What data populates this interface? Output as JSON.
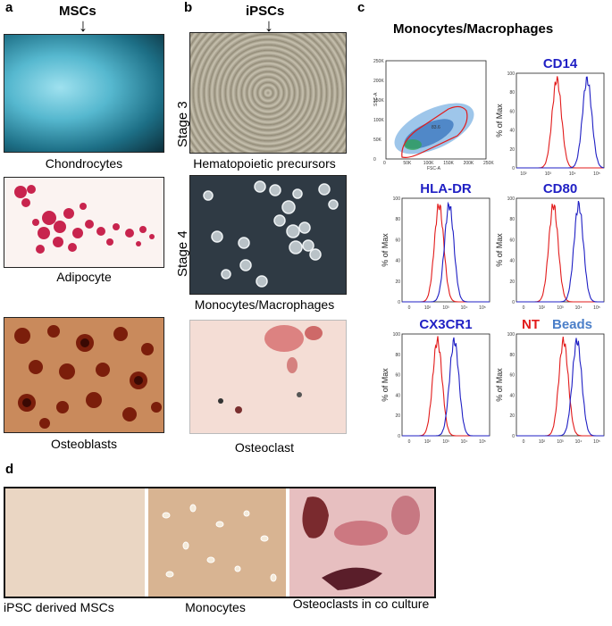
{
  "panels": {
    "a": "a",
    "b": "b",
    "c": "c",
    "d": "d"
  },
  "headers": {
    "mscs": "MSCs",
    "ipscs": "iPSCs",
    "mono": "Monocytes/Macrophages"
  },
  "captions_a": [
    "Chondrocytes",
    "Adipocyte",
    "Osteoblasts"
  ],
  "stages": [
    "Stage 3",
    "Stage 4"
  ],
  "captions_b": [
    "Hematopoietic precursors",
    "Monocytes/Macrophages",
    "Osteoclast"
  ],
  "facs": {
    "scatter_title": "",
    "markers": [
      "CD14",
      "HLA-DR",
      "CD80",
      "CX3CR1"
    ],
    "ylabel": "% of Max",
    "legend_nt": "NT",
    "legend_beads": "Beads",
    "colors": {
      "nt": "#e21b1b",
      "beads": "#1f1fc4"
    }
  },
  "captions_d": [
    "iPSC derived MSCs",
    "Monocytes",
    "Osteoclasts in co culture"
  ],
  "chart_data": [
    {
      "type": "scatter",
      "title": "",
      "xlabel": "FSC-A",
      "ylabel": "SSC-A",
      "xticks": [
        "0",
        "50K",
        "100K",
        "150K",
        "200K",
        "250K"
      ],
      "yticks": [
        "0",
        "50K",
        "100K",
        "150K",
        "200K",
        "250K"
      ],
      "gate_label": "83.6"
    },
    {
      "type": "line",
      "title": "CD14",
      "ylabel": "% of Max",
      "xticks": [
        "10²",
        "10³",
        "10⁴",
        "10⁵"
      ],
      "yticks": [
        "0",
        "20",
        "40",
        "60",
        "80",
        "100"
      ],
      "series": [
        {
          "name": "NT",
          "peak": 2.4
        },
        {
          "name": "Beads",
          "peak": 4.2
        }
      ]
    },
    {
      "type": "line",
      "title": "HLA-DR",
      "ylabel": "% of Max",
      "xticks": [
        "0",
        "10²",
        "10³",
        "10⁴",
        "10⁵"
      ],
      "yticks": [
        "0",
        "20",
        "40",
        "60",
        "80",
        "100"
      ],
      "series": [
        {
          "name": "NT",
          "peak": 2.2
        },
        {
          "name": "Beads",
          "peak": 2.8
        }
      ]
    },
    {
      "type": "line",
      "title": "CD80",
      "ylabel": "% of Max",
      "xticks": [
        "0",
        "10²",
        "10³",
        "10⁴",
        "10⁵"
      ],
      "yticks": [
        "0",
        "20",
        "40",
        "60",
        "80",
        "100"
      ],
      "series": [
        {
          "name": "NT",
          "peak": 2.2
        },
        {
          "name": "Beads",
          "peak": 3.7
        }
      ]
    },
    {
      "type": "line",
      "title": "CX3CR1",
      "ylabel": "% of Max",
      "xticks": [
        "0",
        "10²",
        "10³",
        "10⁴",
        "10⁵"
      ],
      "yticks": [
        "0",
        "20",
        "40",
        "60",
        "80",
        "100"
      ],
      "series": [
        {
          "name": "NT",
          "peak": 2.1
        },
        {
          "name": "Beads",
          "peak": 3.1
        }
      ]
    },
    {
      "type": "line",
      "title": "",
      "ylabel": "% of Max",
      "xticks": [
        "0",
        "10²",
        "10³",
        "10⁴",
        "10⁵"
      ],
      "yticks": [
        "0",
        "20",
        "40",
        "60",
        "80",
        "100"
      ],
      "series": [
        {
          "name": "NT",
          "peak": 2.8
        },
        {
          "name": "Beads",
          "peak": 3.6
        }
      ]
    }
  ]
}
